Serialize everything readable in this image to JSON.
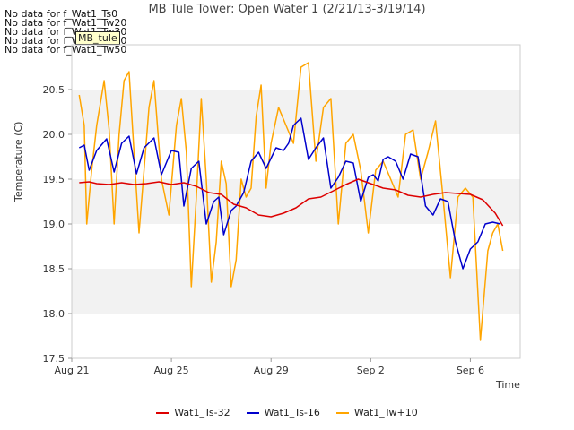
{
  "nodata_messages": [
    "No data for f_Wat1_Ts0",
    "No data for f_Wat1_Tw20",
    "No data for f_Wat1_Tw30",
    "No data for f_Wat1_Tw40",
    "No data for f_Wat1_Tw50"
  ],
  "tooltip": "MB_tule",
  "colors": {
    "grid_band": "#f2f2f2",
    "axis": "#cccccc",
    "Wat1_Ts-32": "#dd0000",
    "Wat1_Ts-16": "#0000cc",
    "Wat1_Tw+10": "#ffa500"
  },
  "chart_data": {
    "type": "line",
    "title": "MB Tule Tower: Open Water 1 (2/21/13-3/19/14)",
    "xlabel": "Time",
    "ylabel": "Temperature (C)",
    "xlim": [
      0,
      18
    ],
    "ylim": [
      17.5,
      21.0
    ],
    "x_ticks": [
      {
        "x": 0,
        "label": "Aug 21"
      },
      {
        "x": 4,
        "label": "Aug 25"
      },
      {
        "x": 8,
        "label": "Aug 29"
      },
      {
        "x": 12,
        "label": "Sep 2"
      },
      {
        "x": 16,
        "label": "Sep 6"
      }
    ],
    "y_ticks": [
      17.5,
      18.0,
      18.5,
      19.0,
      19.5,
      20.0,
      20.5
    ],
    "legend_position": "bottom",
    "series": [
      {
        "name": "Wat1_Ts-32",
        "x": [
          0.3,
          0.7,
          1.0,
          1.5,
          2.0,
          2.5,
          3.0,
          3.5,
          4.0,
          4.5,
          5.0,
          5.5,
          6.0,
          6.5,
          7.0,
          7.5,
          8.0,
          8.5,
          9.0,
          9.5,
          10.0,
          10.5,
          11.0,
          11.5,
          12.0,
          12.5,
          13.0,
          13.5,
          14.0,
          14.5,
          15.0,
          15.5,
          16.0,
          16.5,
          17.0,
          17.3
        ],
        "y": [
          19.46,
          19.47,
          19.45,
          19.44,
          19.46,
          19.44,
          19.45,
          19.47,
          19.44,
          19.46,
          19.42,
          19.35,
          19.33,
          19.22,
          19.18,
          19.1,
          19.08,
          19.12,
          19.18,
          19.28,
          19.3,
          19.37,
          19.44,
          19.5,
          19.45,
          19.4,
          19.38,
          19.32,
          19.3,
          19.33,
          19.35,
          19.34,
          19.33,
          19.27,
          19.12,
          18.98
        ]
      },
      {
        "name": "Wat1_Ts-16",
        "x": [
          0.3,
          0.5,
          0.7,
          1.0,
          1.4,
          1.7,
          2.0,
          2.3,
          2.6,
          2.9,
          3.3,
          3.6,
          4.0,
          4.3,
          4.5,
          4.8,
          5.1,
          5.4,
          5.7,
          5.9,
          6.1,
          6.4,
          6.6,
          6.9,
          7.2,
          7.5,
          7.8,
          8.2,
          8.5,
          8.7,
          8.9,
          9.2,
          9.5,
          9.8,
          10.1,
          10.4,
          10.7,
          11.0,
          11.3,
          11.6,
          11.9,
          12.1,
          12.3,
          12.5,
          12.7,
          13.0,
          13.3,
          13.6,
          13.9,
          14.2,
          14.5,
          14.8,
          15.1,
          15.4,
          15.7,
          16.0,
          16.3,
          16.6,
          16.9,
          17.2
        ],
        "y": [
          19.85,
          19.88,
          19.6,
          19.82,
          19.95,
          19.58,
          19.9,
          19.98,
          19.56,
          19.85,
          19.96,
          19.55,
          19.82,
          19.8,
          19.2,
          19.62,
          19.7,
          19.0,
          19.25,
          19.3,
          18.88,
          19.15,
          19.2,
          19.35,
          19.7,
          19.8,
          19.62,
          19.85,
          19.82,
          19.9,
          20.1,
          20.18,
          19.72,
          19.85,
          19.96,
          19.4,
          19.52,
          19.7,
          19.68,
          19.25,
          19.52,
          19.55,
          19.48,
          19.72,
          19.75,
          19.7,
          19.5,
          19.78,
          19.75,
          19.2,
          19.1,
          19.28,
          19.25,
          18.8,
          18.5,
          18.72,
          18.8,
          19.0,
          19.02,
          19.0
        ]
      },
      {
        "name": "Wat1_Tw+10",
        "x": [
          0.3,
          0.5,
          0.6,
          0.8,
          1.0,
          1.3,
          1.5,
          1.7,
          1.9,
          2.1,
          2.3,
          2.5,
          2.7,
          2.9,
          3.1,
          3.3,
          3.6,
          3.9,
          4.2,
          4.4,
          4.6,
          4.8,
          5.0,
          5.2,
          5.4,
          5.6,
          5.8,
          6.0,
          6.2,
          6.4,
          6.6,
          6.8,
          7.0,
          7.2,
          7.4,
          7.6,
          7.8,
          8.0,
          8.3,
          8.6,
          8.9,
          9.2,
          9.5,
          9.8,
          10.1,
          10.4,
          10.7,
          11.0,
          11.3,
          11.6,
          11.9,
          12.2,
          12.5,
          12.8,
          13.1,
          13.4,
          13.7,
          14.0,
          14.3,
          14.6,
          14.9,
          15.2,
          15.5,
          15.8,
          16.1,
          16.4,
          16.7,
          16.9,
          17.1,
          17.3
        ],
        "y": [
          20.44,
          20.1,
          19.0,
          19.6,
          20.1,
          20.6,
          20.05,
          19.0,
          20.0,
          20.6,
          20.7,
          19.8,
          18.9,
          19.6,
          20.3,
          20.6,
          19.5,
          19.1,
          20.1,
          20.4,
          19.8,
          18.3,
          19.3,
          20.4,
          19.5,
          18.35,
          18.8,
          19.7,
          19.45,
          18.3,
          18.6,
          19.5,
          19.3,
          19.4,
          20.2,
          20.55,
          19.4,
          19.9,
          20.3,
          20.1,
          19.9,
          20.75,
          20.8,
          19.7,
          20.3,
          20.4,
          19.0,
          19.9,
          20.0,
          19.6,
          18.9,
          19.6,
          19.7,
          19.5,
          19.3,
          20.0,
          20.05,
          19.5,
          19.8,
          20.15,
          19.3,
          18.4,
          19.3,
          19.4,
          19.3,
          17.7,
          18.7,
          18.9,
          19.0,
          18.7
        ]
      }
    ]
  }
}
